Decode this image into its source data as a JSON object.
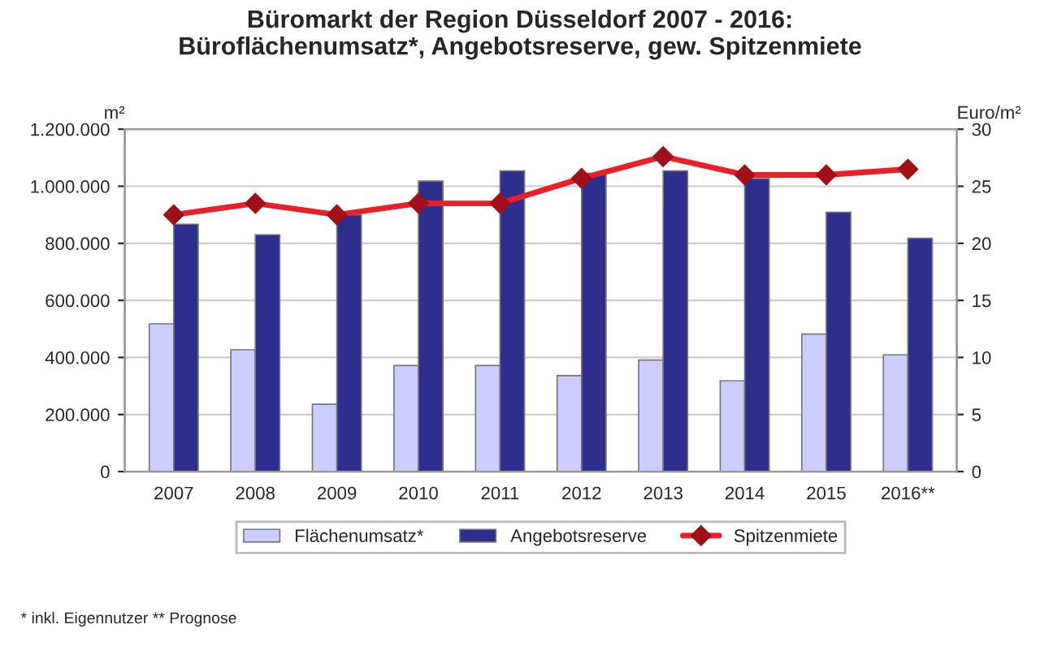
{
  "chart_data": {
    "type": "bar",
    "title": "Büromarkt der Region Düsseldorf 2007 - 2016:\nBüroflächenumsatz*, Angebotsreserve, gew. Spitzenmiete",
    "ylabel": "m²",
    "y2label": "Euro/m²",
    "categories": [
      "2007",
      "2008",
      "2009",
      "2010",
      "2011",
      "2012",
      "2013",
      "2014",
      "2015",
      "2016**"
    ],
    "series": [
      {
        "name": "Flächenumsatz*",
        "color": "#ccccff",
        "values": [
          518000,
          427000,
          236000,
          372000,
          372000,
          336000,
          391000,
          318000,
          482000,
          409000
        ]
      },
      {
        "name": "Angebotsreserve",
        "color": "#2e2e8e",
        "values": [
          867000,
          830000,
          900000,
          1018000,
          1054000,
          1045000,
          1054000,
          1027000,
          909000,
          818000
        ]
      },
      {
        "name": "Spitzenmiete",
        "type": "line",
        "axis": "y2",
        "color": "#e8202a",
        "marker": "diamond",
        "line_style": "solid",
        "values": [
          22.5,
          23.5,
          22.5,
          23.5,
          23.5,
          25.7,
          27.6,
          26,
          26,
          26.5
        ]
      }
    ],
    "ylim": [
      0,
      1200000
    ],
    "yticks": [
      {
        "value": 0,
        "label": "0"
      },
      {
        "value": 200000,
        "label": "200.000"
      },
      {
        "value": 400000,
        "label": "400.000"
      },
      {
        "value": 600000,
        "label": "600.000"
      },
      {
        "value": 800000,
        "label": "800.000"
      },
      {
        "value": 1000000,
        "label": "1.000.000"
      },
      {
        "value": 1200000,
        "label": "1.200.000"
      }
    ],
    "y2lim": [
      0,
      30
    ],
    "y2ticks": [
      0,
      5,
      10,
      15,
      20,
      25,
      30
    ],
    "grid": "y",
    "legend": "bottom",
    "annotations": [
      "* inkl. Eigennutzer ** Prognose"
    ]
  }
}
